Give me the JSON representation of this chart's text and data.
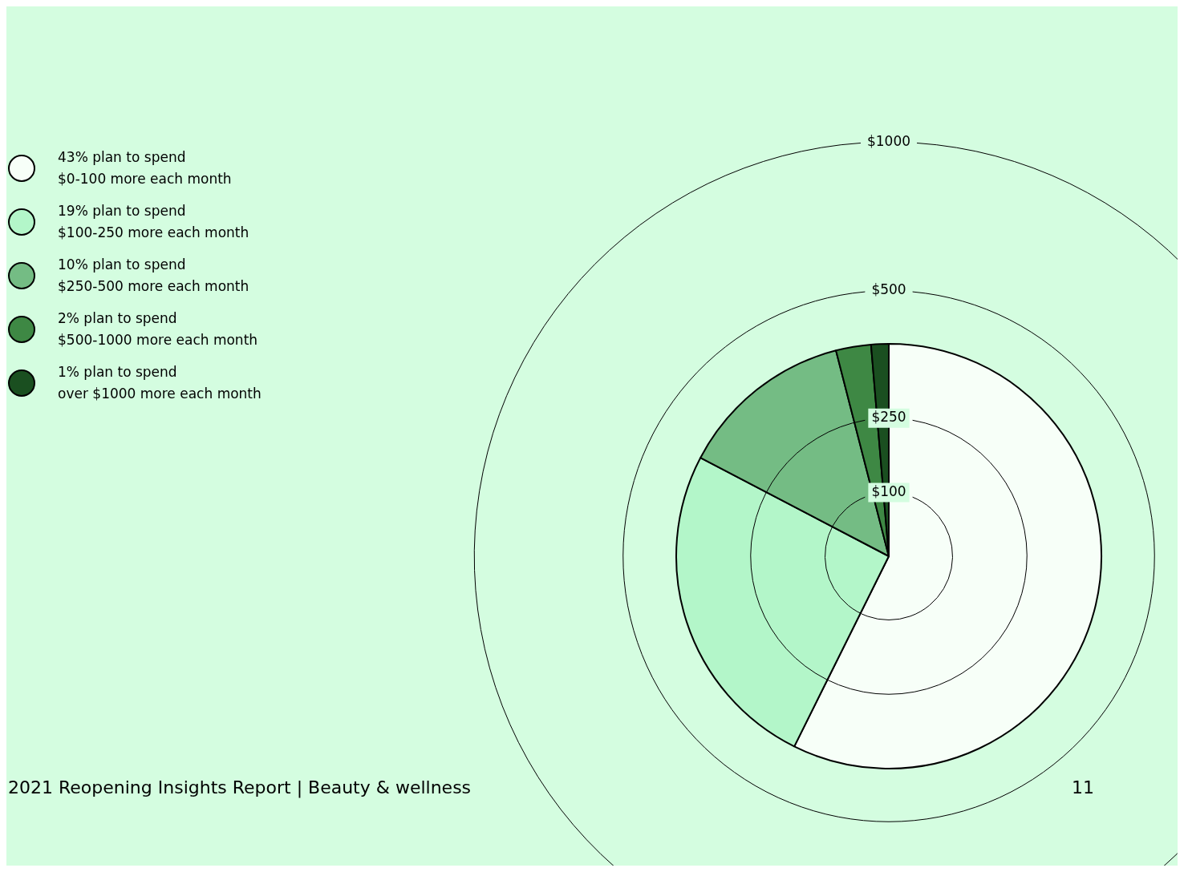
{
  "chart_data": {
    "type": "pie",
    "categories": [
      "43% plan to spend\n$0-100 more each month",
      "19% plan to spend\n$100-250 more each month",
      "10% plan to spend\n$250-500 more each month",
      "2% plan to spend\n$500-1000 more each month",
      "1% plan to spend\nover $1000 more each month"
    ],
    "values": [
      43,
      19,
      10,
      2,
      1
    ],
    "colors": [
      "#f7fff8",
      "#b3f6c9",
      "#74bc84",
      "#3e8844",
      "#1a4f20"
    ],
    "legend": "left",
    "annotations": [
      "$100",
      "$250",
      "$500",
      "$1000",
      "2021 Reopening Insights Report | Beauty & wellness",
      "11"
    ]
  }
}
